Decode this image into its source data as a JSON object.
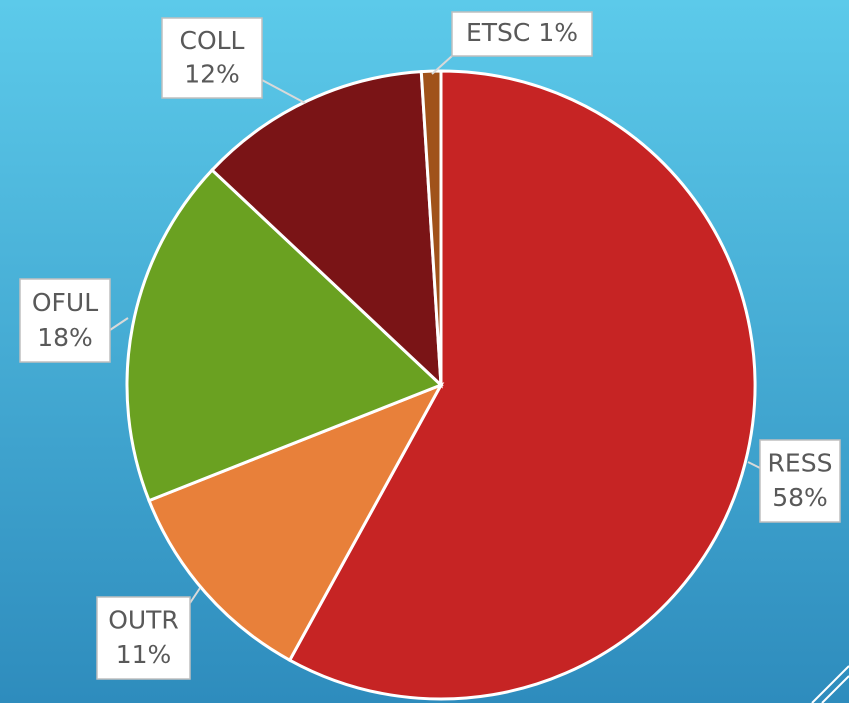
{
  "chart_data": {
    "type": "pie",
    "categories": [
      "RESS",
      "OUTR",
      "OFUL",
      "COLL",
      "ETSC"
    ],
    "values": [
      58,
      11,
      18,
      12,
      1
    ],
    "value_labels": [
      "58%",
      "11%",
      "18%",
      "12%",
      "1%"
    ],
    "colors": [
      "#c62424",
      "#e8803a",
      "#6aa121",
      "#7a1416",
      "#a0521a"
    ],
    "start_angle": 0,
    "direction": "clockwise"
  }
}
